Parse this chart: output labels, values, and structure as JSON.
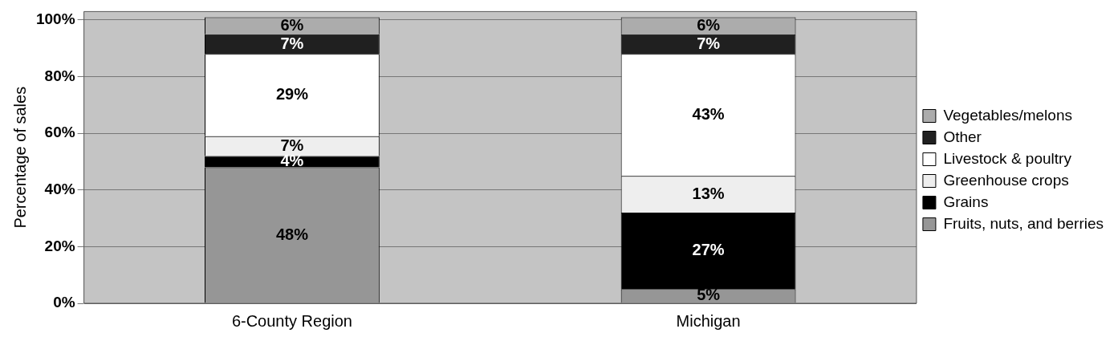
{
  "chart_data": {
    "type": "bar",
    "stacked": true,
    "ylabel": "Percentage of sales",
    "categories": [
      "6-County Region",
      "Michigan"
    ],
    "series": [
      {
        "name": "Fruits, nuts, and berries",
        "color": "#969696",
        "values": [
          48,
          5
        ],
        "value_labels": [
          "48%",
          "5%"
        ]
      },
      {
        "name": "Grains",
        "color": "#000000",
        "values": [
          4,
          27
        ],
        "value_labels": [
          "4%",
          "27%"
        ]
      },
      {
        "name": "Greenhouse crops",
        "color": "#eeeeee",
        "values": [
          7,
          13
        ],
        "value_labels": [
          "7%",
          "13%"
        ]
      },
      {
        "name": "Livestock & poultry",
        "color": "#ffffff",
        "values": [
          29,
          43
        ],
        "value_labels": [
          "29%",
          "43%"
        ]
      },
      {
        "name": "Other",
        "color": "#202020",
        "values": [
          7,
          7
        ],
        "value_labels": [
          "7%",
          "7%"
        ]
      },
      {
        "name": "Vegetables/melons",
        "color": "#acacac",
        "values": [
          6,
          6
        ],
        "value_labels": [
          "6%",
          "6%"
        ]
      }
    ],
    "ylim": [
      0,
      103
    ],
    "yticks": [
      {
        "value": 0,
        "label": "0%"
      },
      {
        "value": 20,
        "label": "20%"
      },
      {
        "value": 40,
        "label": "40%"
      },
      {
        "value": 60,
        "label": "60%"
      },
      {
        "value": 80,
        "label": "80%"
      },
      {
        "value": 100,
        "label": "100%"
      }
    ],
    "grid": "y",
    "legend": "right"
  }
}
